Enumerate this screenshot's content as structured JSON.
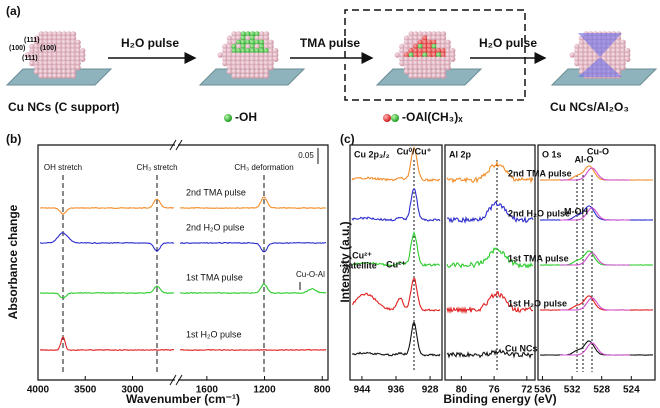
{
  "panel_a": {
    "label": "(a)",
    "facets": [
      "(111)",
      "(100)",
      "(100)",
      "(111)"
    ],
    "steps": [
      "H₂O pulse",
      "TMA pulse",
      "H₂O pulse"
    ],
    "captions": [
      "Cu NCs (C support)",
      "Cu NCs/Al₂O₃"
    ],
    "legend": [
      "-OH",
      "-OAl(CH₃)ₓ"
    ]
  },
  "panel_b": {
    "label": "(b)",
    "ylabel": "Absorbance change",
    "xlabel": "Wavenumber (cm⁻¹)",
    "xlim_left": [
      4000,
      2550
    ],
    "xticks_left": [
      4000,
      3500,
      3000
    ],
    "xlim_right": [
      1800,
      760
    ],
    "xticks_right": [
      1600,
      1200,
      800
    ],
    "bands": [
      "OH stretch",
      "CH₃ stretch",
      "CH₃ deformation"
    ],
    "traces": [
      "2nd TMA pulse",
      "2nd H₂O pulse",
      "1st TMA pulse",
      "1st H₂O pulse"
    ],
    "scale_bar": "0.05",
    "annotation": "Cu-O-Al"
  },
  "panel_c": {
    "label": "(c)",
    "ylabel": "Intensity (a.u.)",
    "xlabel": "Binding energy (eV)",
    "cu": {
      "title": "Cu 2p₃/₂",
      "xlim": [
        946.8,
        925.2
      ],
      "xticks": [
        944,
        936,
        928
      ],
      "labels": [
        "Cu⁰/Cu⁺",
        "Cu²⁺",
        "satellite",
        "Cu²⁺"
      ]
    },
    "al": {
      "title": "Al 2p",
      "xlim": [
        82,
        71
      ],
      "xticks": [
        80,
        76,
        72
      ],
      "traces": [
        "2nd TMA pulse",
        "2nd H₂O pulse",
        "1st TMA pulse",
        "1st H₂O pulse",
        "Cu NCs"
      ]
    },
    "o": {
      "title": "O 1s",
      "xlim": [
        536.6,
        520.8
      ],
      "xticks": [
        536,
        532,
        528,
        524
      ],
      "labels": [
        "Cu-O",
        "Al-O",
        "M-OH"
      ]
    }
  }
}
